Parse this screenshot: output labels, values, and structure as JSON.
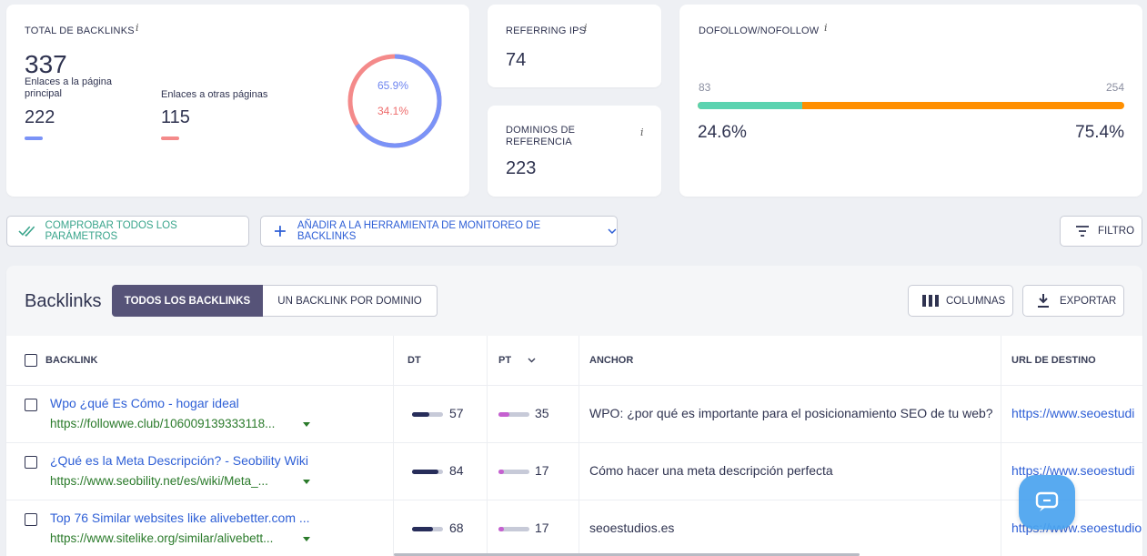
{
  "total": {
    "label": "TOTAL DE BACKLINKS",
    "info": "i",
    "value": "337",
    "main_label": "Enlaces a la página principal",
    "main_value": "222",
    "other_label": "Enlaces a otras páginas",
    "other_value": "115",
    "pct_main": "65.9%",
    "pct_other": "34.1%",
    "main_fraction": 0.659
  },
  "ips": {
    "label": "REFERRING IPS",
    "info": "i",
    "value": "74"
  },
  "domains": {
    "label": "DOMINIOS DE REFERENCIA",
    "info": "i",
    "value": "223"
  },
  "follow": {
    "label": "DOFOLLOW/NOFOLLOW",
    "info": "i",
    "left_count": "83",
    "right_count": "254",
    "left_pct": "24.6%",
    "right_pct": "75.4%",
    "left_fraction": 0.246,
    "colors": {
      "dofollow": "#5bd3b0",
      "nofollow": "#ff8f00"
    }
  },
  "actions": {
    "check": "COMPROBAR TODOS LOS PARÁMETROS",
    "add": "AÑADIR A LA HERRAMIENTA DE MONITOREO DE BACKLINKS",
    "filter": "FILTRO"
  },
  "table": {
    "title": "Backlinks",
    "tab_all": "TODOS LOS BACKLINKS",
    "tab_domain": "UN BACKLINK POR DOMINIO",
    "columns_btn": "COLUMNAS",
    "export_btn": "EXPORTAR",
    "headers": {
      "backlink": "BACKLINK",
      "dt": "DT",
      "pt": "PT",
      "anchor": "ANCHOR",
      "dest": "URL DE DESTINO"
    },
    "rows": [
      {
        "title": "Wpo ¿qué Es Cómo - hogar ideal",
        "url": "https://followwe.club/106009139333118...",
        "dt": "57",
        "pt": "35",
        "dt_frac": 0.57,
        "pt_frac": 0.35,
        "anchor": "WPO: ¿por qué es importante para el posicionamiento SEO de tu web?",
        "dest": "https://www.seoestudi"
      },
      {
        "title": "¿Qué es la Meta Descripción? - Seobility Wiki",
        "url": "https://www.seobility.net/es/wiki/Meta_...",
        "dt": "84",
        "pt": "17",
        "dt_frac": 0.84,
        "pt_frac": 0.17,
        "anchor": "Cómo hacer una meta descripción perfecta",
        "dest": "https://www.seoestudi"
      },
      {
        "title": "Top 76 Similar websites like alivebetter.com ...",
        "url": "https://www.sitelike.org/similar/alivebett...",
        "dt": "68",
        "pt": "17",
        "dt_frac": 0.68,
        "pt_frac": 0.17,
        "anchor": "seoestudios.es",
        "dest": "https://www.seoestudio"
      }
    ]
  }
}
